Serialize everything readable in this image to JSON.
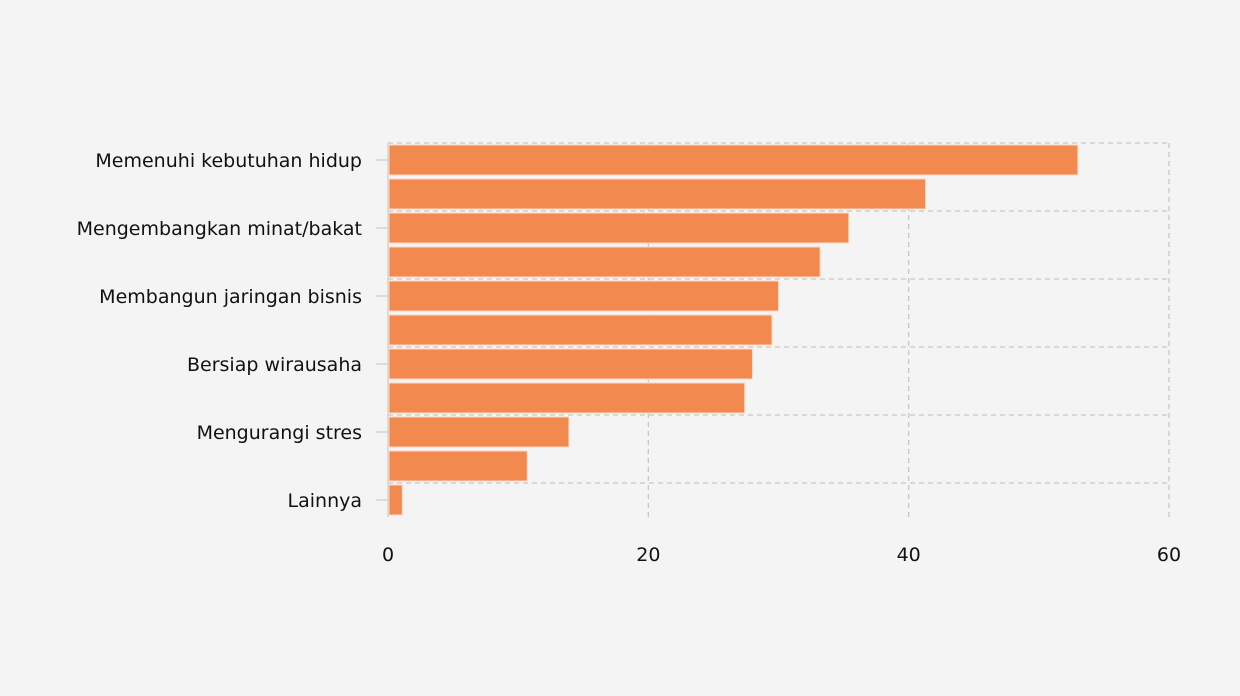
{
  "chart_data": {
    "type": "bar",
    "orientation": "horizontal",
    "categories": [
      "Memenuhi kebutuhan hidup",
      "",
      "Mengembangkan minat/bakat",
      "",
      "Membangun jaringan bisnis",
      "",
      "Bersiap wirausaha",
      "",
      "Mengurangi stres",
      "",
      "Lainnya"
    ],
    "values": [
      53.0,
      41.3,
      35.4,
      33.2,
      30.0,
      29.5,
      28.0,
      27.4,
      13.9,
      10.7,
      1.1
    ],
    "xlim": [
      0,
      60
    ],
    "xticks": [
      "0",
      "20",
      "40",
      "60"
    ],
    "title": "",
    "xlabel": "",
    "ylabel": "",
    "grid": true,
    "bar_color": "#f28a4f",
    "background": "#f4f4f4"
  }
}
